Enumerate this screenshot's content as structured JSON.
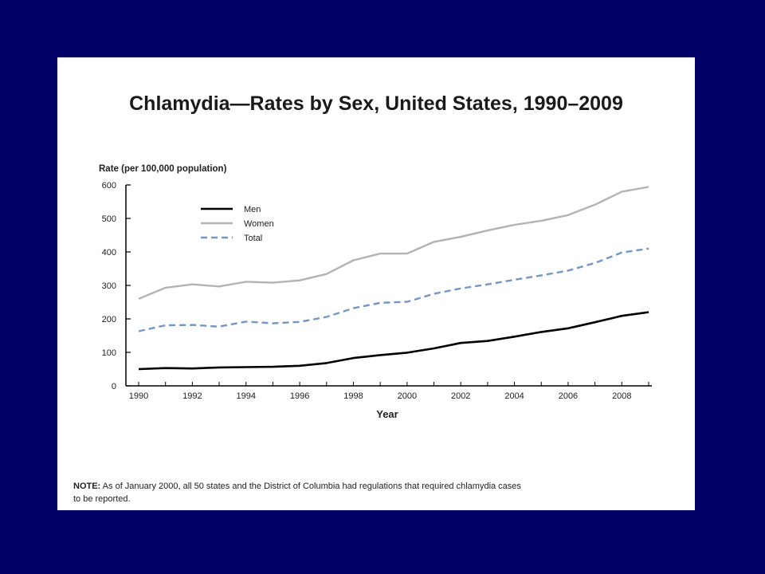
{
  "chart_data": {
    "type": "line",
    "title": "Chlamydia—Rates by Sex, United States, 1990–2009",
    "ylabel": "Rate (per 100,000 population)",
    "xlabel": "Year",
    "ylim": [
      0,
      600
    ],
    "yticks": [
      0,
      100,
      200,
      300,
      400,
      500,
      600
    ],
    "xlim": [
      1990,
      2009
    ],
    "xticks": [
      1990,
      1992,
      1994,
      1996,
      1998,
      2000,
      2002,
      2004,
      2006,
      2008
    ],
    "legend_position": "top-left",
    "x": [
      1990,
      1991,
      1992,
      1993,
      1994,
      1995,
      1996,
      1997,
      1998,
      1999,
      2000,
      2001,
      2002,
      2003,
      2004,
      2005,
      2006,
      2007,
      2008,
      2009
    ],
    "series": [
      {
        "name": "Men",
        "color": "#000000",
        "style": "solid",
        "values": [
          50,
          53,
          52,
          55,
          56,
          57,
          60,
          68,
          83,
          92,
          99,
          112,
          128,
          134,
          147,
          161,
          172,
          190,
          209,
          220
        ]
      },
      {
        "name": "Women",
        "color": "#b3b3b3",
        "style": "solid",
        "values": [
          260,
          293,
          303,
          297,
          311,
          308,
          315,
          334,
          375,
          395,
          395,
          430,
          445,
          464,
          481,
          493,
          510,
          541,
          580,
          594
        ]
      },
      {
        "name": "Total",
        "color": "#7397c4",
        "style": "dashed",
        "values": [
          163,
          181,
          182,
          177,
          192,
          187,
          191,
          206,
          232,
          248,
          251,
          275,
          291,
          303,
          317,
          330,
          344,
          367,
          398,
          410
        ]
      }
    ]
  },
  "note": {
    "label": "NOTE:",
    "text": " As of January 2000,  all 50 states and the District of Columbia had regulations that required chlamydia cases",
    "text2": "to be reported."
  },
  "colors": {
    "background": "#000066",
    "panel": "#ffffff"
  }
}
